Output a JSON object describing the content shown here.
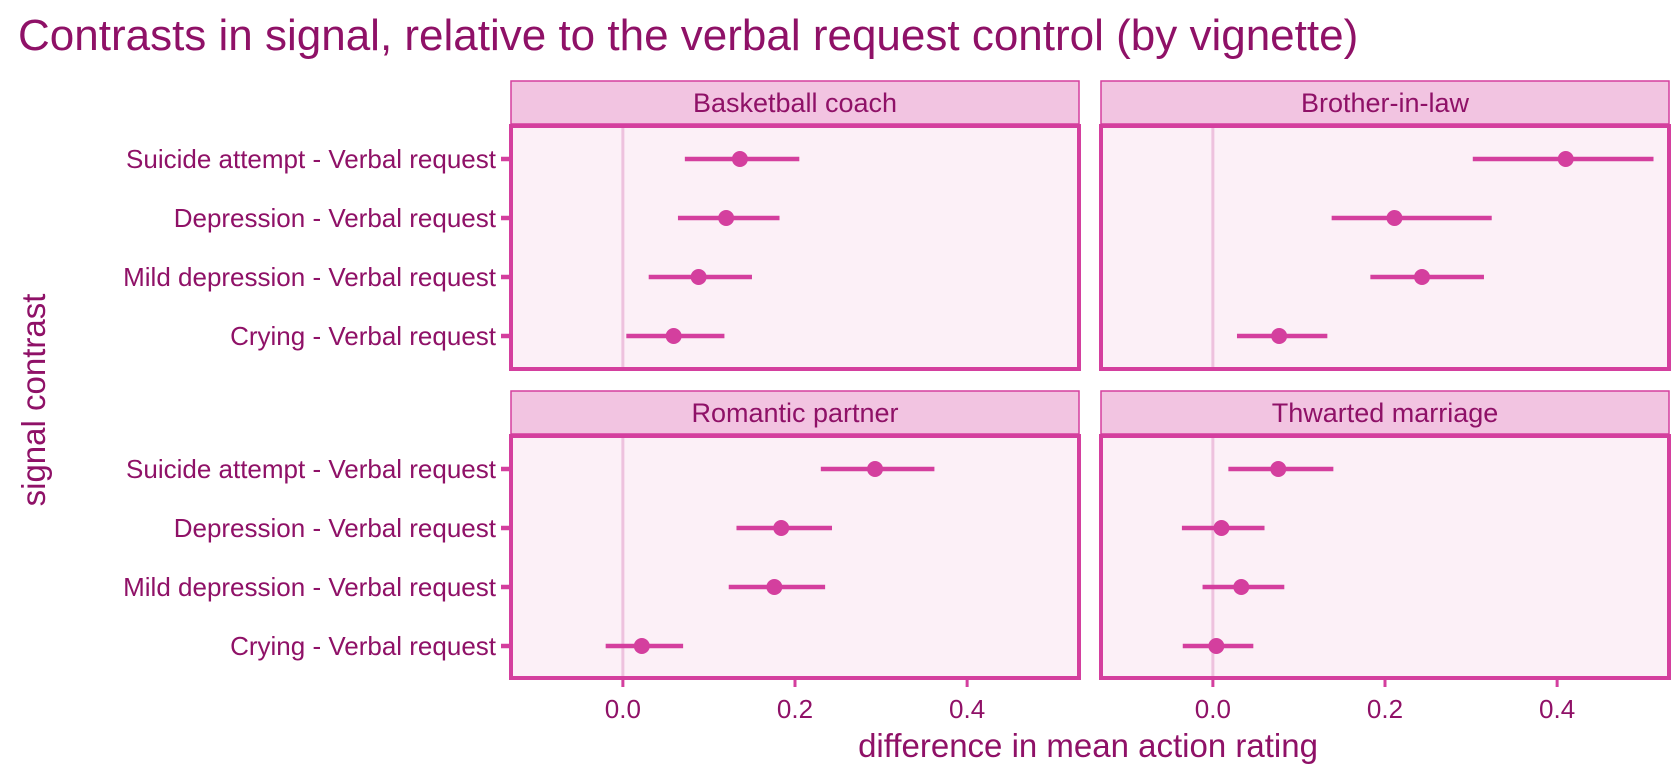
{
  "colors": {
    "text": "#8f1167",
    "accent": "#d43f9e",
    "panel_bg": "#fcf0f7",
    "strip_bg": "#f2c4e1",
    "zero_line": "#eec2de"
  },
  "chart_data": {
    "type": "scatter",
    "subtype": "point-range, faceted 2x2",
    "title": "Contrasts in signal, relative to the verbal request control (by vignette)",
    "xlabel": "difference in mean action rating",
    "ylabel": "signal contrast",
    "xlim": [
      -0.13,
      0.53
    ],
    "xticks": [
      0.0,
      0.2,
      0.4
    ],
    "xtick_labels": [
      "0.0",
      "0.2",
      "0.4"
    ],
    "reference_line_x": 0,
    "categories": [
      "Suicide attempt - Verbal request",
      "Depression - Verbal request",
      "Mild depression - Verbal request",
      "Crying - Verbal request"
    ],
    "facets": [
      {
        "name": "Basketball coach",
        "points": [
          {
            "estimate": 0.136,
            "low": 0.072,
            "high": 0.205
          },
          {
            "estimate": 0.12,
            "low": 0.064,
            "high": 0.182
          },
          {
            "estimate": 0.088,
            "low": 0.03,
            "high": 0.15
          },
          {
            "estimate": 0.059,
            "low": 0.004,
            "high": 0.118
          }
        ]
      },
      {
        "name": "Brother-in-law",
        "points": [
          {
            "estimate": 0.41,
            "low": 0.302,
            "high": 0.512
          },
          {
            "estimate": 0.211,
            "low": 0.138,
            "high": 0.324
          },
          {
            "estimate": 0.243,
            "low": 0.183,
            "high": 0.315
          },
          {
            "estimate": 0.077,
            "low": 0.028,
            "high": 0.133
          }
        ]
      },
      {
        "name": "Romantic partner",
        "points": [
          {
            "estimate": 0.293,
            "low": 0.23,
            "high": 0.362
          },
          {
            "estimate": 0.184,
            "low": 0.132,
            "high": 0.243
          },
          {
            "estimate": 0.176,
            "low": 0.123,
            "high": 0.235
          },
          {
            "estimate": 0.022,
            "low": -0.02,
            "high": 0.07
          }
        ]
      },
      {
        "name": "Thwarted marriage",
        "points": [
          {
            "estimate": 0.076,
            "low": 0.018,
            "high": 0.14
          },
          {
            "estimate": 0.01,
            "low": -0.036,
            "high": 0.06
          },
          {
            "estimate": 0.033,
            "low": -0.012,
            "high": 0.083
          },
          {
            "estimate": 0.004,
            "low": -0.035,
            "high": 0.047
          }
        ]
      }
    ]
  }
}
